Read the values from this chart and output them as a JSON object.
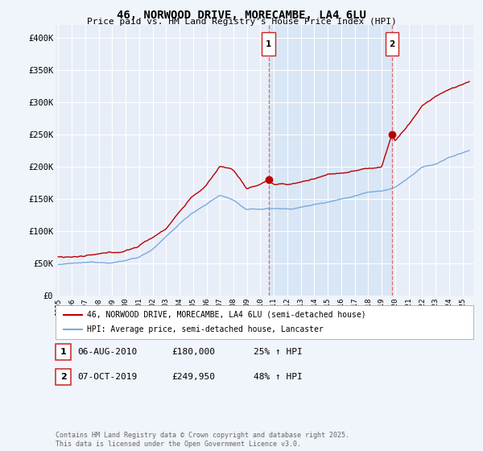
{
  "title": "46, NORWOOD DRIVE, MORECAMBE, LA4 6LU",
  "subtitle": "Price paid vs. HM Land Registry's House Price Index (HPI)",
  "background_color": "#f0f4fb",
  "plot_background": "#e8eef8",
  "shaded_region_color": "#d8e6f5",
  "ylabel_ticks": [
    "£0",
    "£50K",
    "£100K",
    "£150K",
    "£200K",
    "£250K",
    "£300K",
    "£350K",
    "£400K"
  ],
  "ytick_values": [
    0,
    50000,
    100000,
    150000,
    200000,
    250000,
    300000,
    350000,
    400000
  ],
  "ylim": [
    0,
    420000
  ],
  "xlim_start": 1994.8,
  "xlim_end": 2025.8,
  "legend_label_red": "46, NORWOOD DRIVE, MORECAMBE, LA4 6LU (semi-detached house)",
  "legend_label_blue": "HPI: Average price, semi-detached house, Lancaster",
  "sale1_label": "1",
  "sale1_date": "06-AUG-2010",
  "sale1_price": "£180,000",
  "sale1_pct": "25% ↑ HPI",
  "sale1_x": 2010.6,
  "sale1_y": 180000,
  "sale2_label": "2",
  "sale2_date": "07-OCT-2019",
  "sale2_price": "£249,950",
  "sale2_pct": "48% ↑ HPI",
  "sale2_x": 2019.77,
  "sale2_y": 249950,
  "footnote": "Contains HM Land Registry data © Crown copyright and database right 2025.\nThis data is licensed under the Open Government Licence v3.0.",
  "red_color": "#bb0000",
  "blue_color": "#7aaadd",
  "dashed_color": "#dd6666",
  "label_box_color": "#cc2222"
}
